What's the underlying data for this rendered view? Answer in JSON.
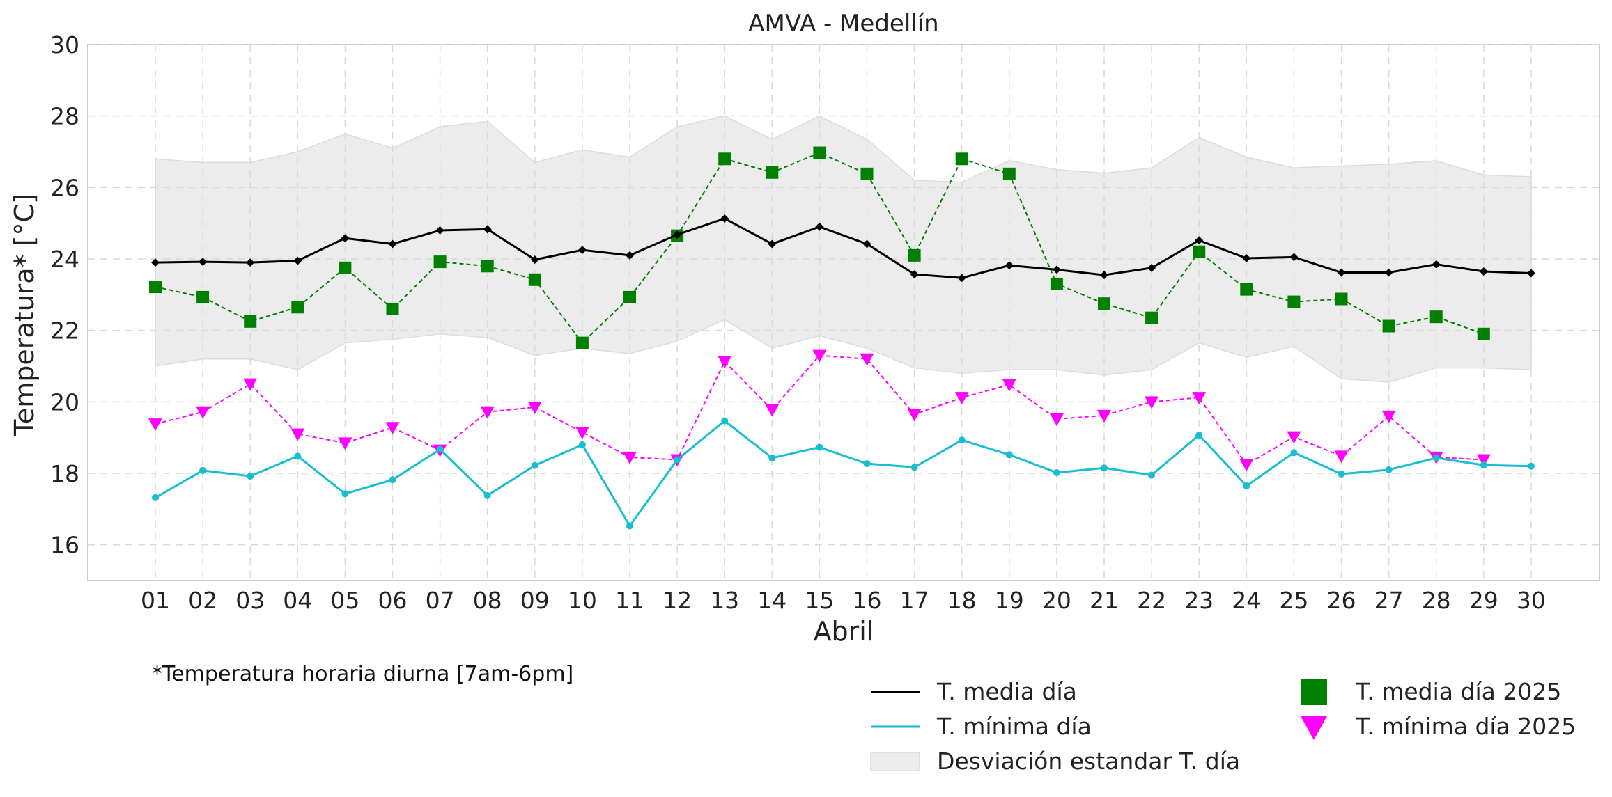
{
  "chart_data": {
    "type": "line",
    "title": "AMVA - Medellín",
    "xlabel": "Abril",
    "ylabel": "Temperatura* [°C]",
    "ylim": [
      15,
      30
    ],
    "yticks": [
      16,
      18,
      20,
      22,
      24,
      26,
      28,
      30
    ],
    "grid": true,
    "note": "*Temperatura horaria diurna [7am-6pm]",
    "legend_position": "bottom-right",
    "categories": [
      "01",
      "02",
      "03",
      "04",
      "05",
      "06",
      "07",
      "08",
      "09",
      "10",
      "11",
      "12",
      "13",
      "14",
      "15",
      "16",
      "17",
      "18",
      "19",
      "20",
      "21",
      "22",
      "23",
      "24",
      "25",
      "26",
      "27",
      "28",
      "29",
      "30"
    ],
    "band": {
      "name": "Desviación estandar T. día",
      "color": "#ececec",
      "upper": [
        26.8,
        26.7,
        26.7,
        27.0,
        27.5,
        27.1,
        27.7,
        27.85,
        26.7,
        27.05,
        26.85,
        27.7,
        28.0,
        27.35,
        28.0,
        27.35,
        26.2,
        26.15,
        26.75,
        26.5,
        26.4,
        26.55,
        27.4,
        26.85,
        26.55,
        26.6,
        26.65,
        26.75,
        26.35,
        26.3
      ],
      "lower": [
        21.0,
        21.2,
        21.2,
        20.9,
        21.65,
        21.75,
        21.9,
        21.8,
        21.3,
        21.5,
        21.35,
        21.7,
        22.3,
        21.5,
        21.85,
        21.5,
        20.95,
        20.8,
        20.9,
        20.9,
        20.75,
        20.9,
        21.65,
        21.25,
        21.55,
        20.65,
        20.55,
        20.95,
        20.95,
        20.9
      ]
    },
    "series": [
      {
        "name": "T. media día",
        "color": "#000000",
        "style": "solid",
        "marker": "diamond",
        "values": [
          23.9,
          23.92,
          23.9,
          23.95,
          24.58,
          24.42,
          24.8,
          24.83,
          23.98,
          24.25,
          24.1,
          24.68,
          25.13,
          24.42,
          24.9,
          24.42,
          23.57,
          23.47,
          23.82,
          23.7,
          23.55,
          23.75,
          24.52,
          24.02,
          24.05,
          23.62,
          23.62,
          23.85,
          23.65,
          23.6
        ]
      },
      {
        "name": "T. mínima día",
        "color": "#17becf",
        "style": "solid",
        "marker": "circle",
        "values": [
          17.32,
          18.08,
          17.92,
          18.48,
          17.43,
          17.82,
          18.67,
          17.38,
          18.22,
          18.8,
          16.53,
          18.38,
          19.47,
          18.43,
          18.73,
          18.27,
          18.17,
          18.93,
          18.52,
          18.02,
          18.15,
          17.95,
          19.07,
          17.65,
          18.58,
          17.98,
          18.1,
          18.43,
          18.23,
          18.2
        ]
      },
      {
        "name": "T. media día 2025",
        "color": "#008000",
        "style": "dashed",
        "marker": "square",
        "values": [
          23.22,
          22.93,
          22.25,
          22.65,
          23.75,
          22.6,
          23.92,
          23.8,
          23.42,
          21.65,
          22.93,
          24.65,
          26.8,
          26.42,
          26.97,
          26.38,
          24.1,
          26.8,
          26.38,
          23.3,
          22.75,
          22.35,
          24.2,
          23.15,
          22.8,
          22.88,
          22.12,
          22.38,
          21.9,
          null
        ]
      },
      {
        "name": "T. mínima día 2025",
        "color": "#ff00ff",
        "style": "dashed",
        "marker": "triangle-down",
        "values": [
          19.38,
          19.72,
          20.5,
          19.1,
          18.85,
          19.28,
          18.65,
          19.72,
          19.85,
          19.15,
          18.45,
          18.38,
          21.13,
          19.78,
          21.3,
          21.2,
          19.65,
          20.12,
          20.48,
          19.52,
          19.62,
          20.0,
          20.12,
          18.25,
          19.02,
          18.48,
          19.6,
          18.45,
          18.38,
          null
        ]
      }
    ]
  }
}
